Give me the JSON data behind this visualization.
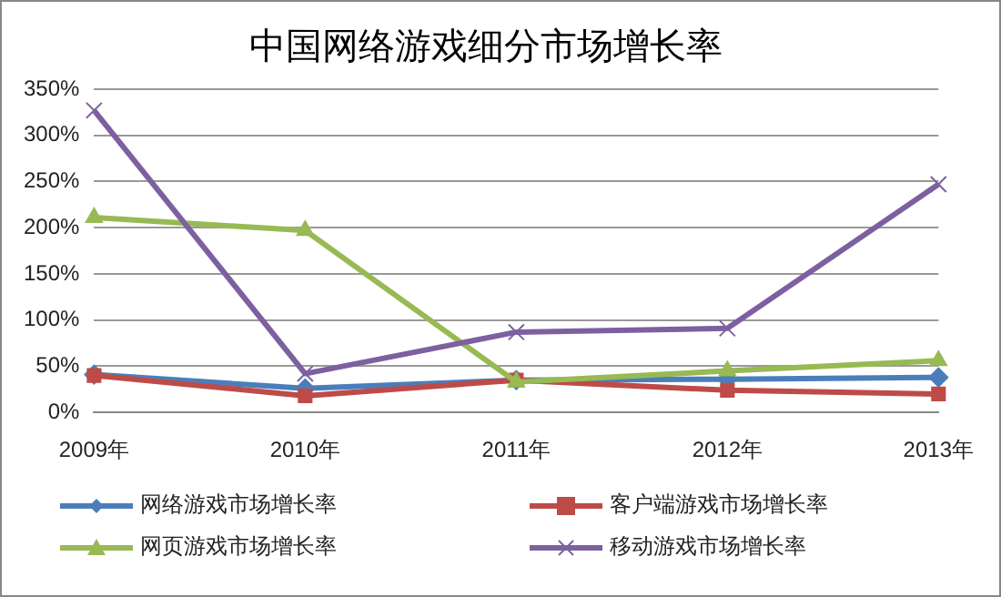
{
  "chart_data": {
    "type": "line",
    "title": "中国网络游戏细分市场增长率",
    "categories": [
      "2009年",
      "2010年",
      "2011年",
      "2012年",
      "2013年"
    ],
    "series": [
      {
        "name": "网络游戏市场增长率",
        "color": "#4a7ebb",
        "marker": "diamond",
        "values": [
          41,
          26,
          35,
          36,
          38
        ]
      },
      {
        "name": "客户端游戏市场增长率",
        "color": "#be4b48",
        "marker": "square",
        "values": [
          40,
          18,
          35,
          24,
          20
        ]
      },
      {
        "name": "网页游戏市场增长率",
        "color": "#98b954",
        "marker": "triangle",
        "values": [
          211,
          197,
          33,
          45,
          56
        ]
      },
      {
        "name": "移动游戏市场增长率",
        "color": "#7d60a0",
        "marker": "cross",
        "values": [
          327,
          42,
          87,
          91,
          247
        ]
      }
    ],
    "ylim": [
      0,
      350
    ],
    "yticks": [
      {
        "value": 0,
        "label": "0%"
      },
      {
        "value": 50,
        "label": "50%"
      },
      {
        "value": 100,
        "label": "100%"
      },
      {
        "value": 150,
        "label": "150%"
      },
      {
        "value": 200,
        "label": "200%"
      },
      {
        "value": 250,
        "label": "250%"
      },
      {
        "value": 300,
        "label": "300%"
      },
      {
        "value": 350,
        "label": "350%"
      }
    ],
    "grid": "y",
    "legend": "bottom"
  }
}
